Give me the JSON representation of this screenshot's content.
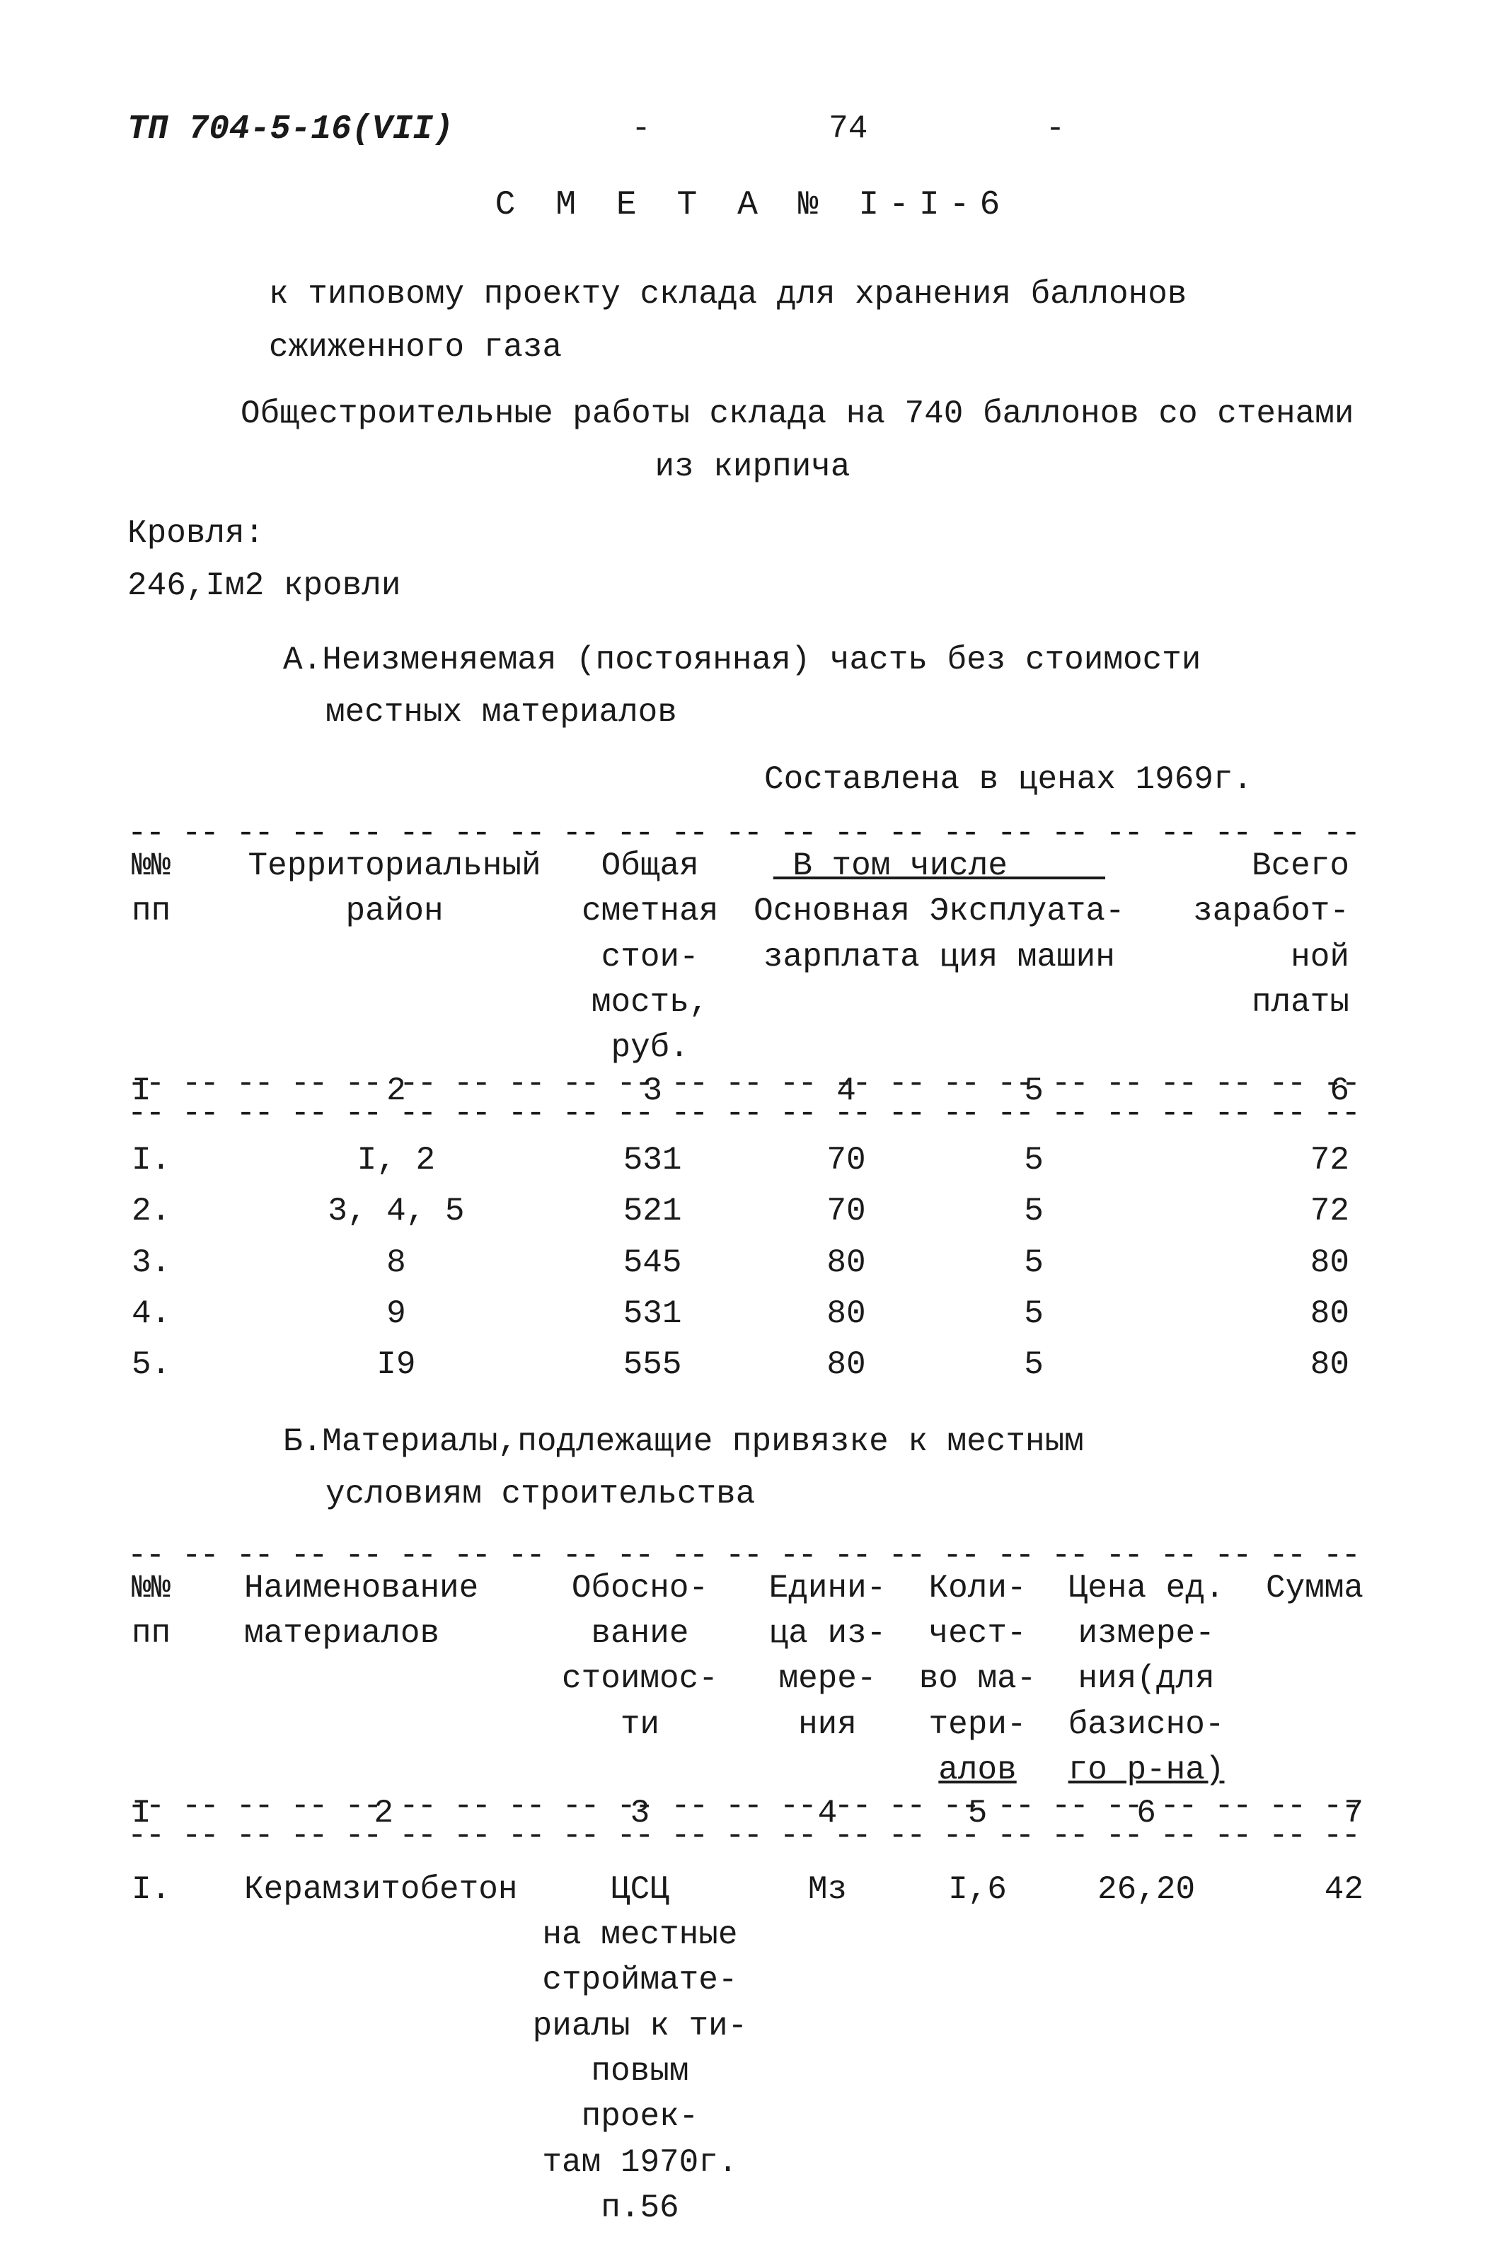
{
  "header": {
    "doc_code": "ТП 704-5-16(VII)",
    "page_number": "74",
    "dash_left": "-",
    "dash_right": "-"
  },
  "title": "С М Е Т А  № I-I-6",
  "line1": "к типовому проекту склада для хранения баллонов",
  "line2": "сжиженного газа",
  "line3": "Общестроительные работы склада на 740 баллонов со стенами",
  "line4": "из кирпича",
  "roof_label": "Кровля:",
  "roof_value": "246,Iм2 кровли",
  "section_a_line1": "А.Неизменяемая (постоянная) часть без стоимости",
  "section_a_line2": "местных материалов",
  "prices_note": "Составлена в ценах 1969г.",
  "table_a": {
    "type": "table",
    "headers": {
      "col1": "№№\nпп",
      "col2": "Территориальный\nрайон",
      "col3": "Общая\nсметная\nстои-\nмость,\nруб.",
      "col45_top": "В том числе",
      "col4": "Основная\nзарплата",
      "col5": "Эксплуата-\nция машин",
      "col6": "Всего\nзаработ-\nной\nплаты"
    },
    "col_nums": [
      "I",
      "2",
      "3",
      "4",
      "5",
      "6"
    ],
    "rows": [
      {
        "n": "I.",
        "region": "I, 2",
        "total": "531",
        "salary": "70",
        "mach": "5",
        "wages": "72"
      },
      {
        "n": "2.",
        "region": "3, 4, 5",
        "total": "521",
        "salary": "70",
        "mach": "5",
        "wages": "72"
      },
      {
        "n": "3.",
        "region": "8",
        "total": "545",
        "salary": "80",
        "mach": "5",
        "wages": "80"
      },
      {
        "n": "4.",
        "region": "9",
        "total": "531",
        "salary": "80",
        "mach": "5",
        "wages": "80"
      },
      {
        "n": "5.",
        "region": "I9",
        "total": "555",
        "salary": "80",
        "mach": "5",
        "wages": "80"
      }
    ]
  },
  "section_b_line1": "Б.Материалы,подлежащие привязке к местным",
  "section_b_line2": "условиям строительства",
  "table_b": {
    "type": "table",
    "headers": {
      "col1": "№№\nпп",
      "col2": "Наименование\nматериалов",
      "col3": "Обосно-\nвание\nстоимос-\nти",
      "col4": "Едини-\nца из-\nмере-\nния",
      "col5": "Коли-\nчест-\nво ма-\nтери-\nалов",
      "col6": "Цена ед.\nизмере-\nния(для\nбазисно-\nго р-на)",
      "col7": "Сумма"
    },
    "col_nums": [
      "I",
      "2",
      "3",
      "4",
      "5",
      "6",
      "7"
    ],
    "rows": [
      {
        "n": "I.",
        "name": "Керамзитобетон",
        "basis": "ЦСЦ\nна местные\nстроймате-\nриалы к ти-\nповым проек-\nтам 1970г.\nп.56",
        "unit": "Мз",
        "qty": "I,6",
        "price": "26,20",
        "sum": "42"
      }
    ]
  }
}
